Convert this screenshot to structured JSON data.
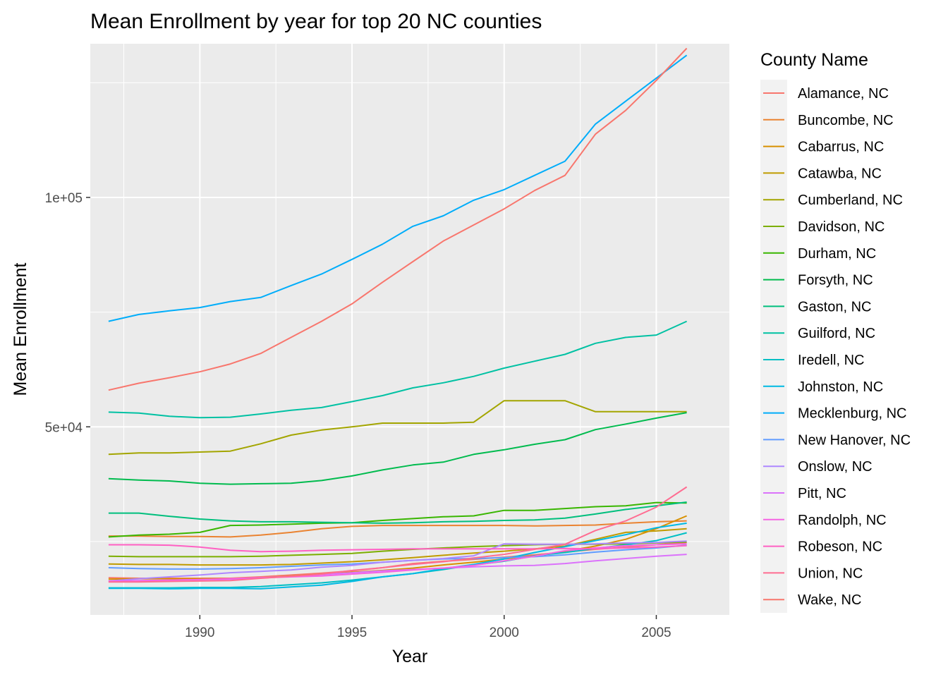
{
  "chart_data": {
    "type": "line",
    "title": "Mean Enrollment by year for top 20 NC counties",
    "xlabel": "Year",
    "ylabel": "Mean  Enrollment",
    "xlim": [
      1986.4,
      2007.4
    ],
    "ylim": [
      9000,
      133500
    ],
    "x_ticks": [
      1990,
      1995,
      2000,
      2005
    ],
    "x_tick_labels": [
      "1990",
      "1995",
      "2000",
      "2005"
    ],
    "x_minor_ticks": [
      1987.5,
      1992.5,
      1997.5,
      2002.5
    ],
    "y_ticks": [
      50000,
      100000
    ],
    "y_tick_labels": [
      "5e+04",
      "1e+05"
    ],
    "y_minor_ticks": [
      25000,
      75000,
      125000
    ],
    "grid": true,
    "legend_title": "County Name",
    "legend_position": "right",
    "x": [
      1987,
      1988,
      1989,
      1990,
      1991,
      1992,
      1993,
      1994,
      1995,
      1996,
      1997,
      1998,
      1999,
      2000,
      2001,
      2002,
      2003,
      2004,
      2005,
      2006
    ],
    "series": [
      {
        "name": "Alamance, NC",
        "color": "#F8766D",
        "values": [
          17100,
          17000,
          17000,
          17000,
          17000,
          17300,
          17700,
          18100,
          18600,
          19300,
          20200,
          20700,
          21100,
          21600,
          22100,
          22700,
          23300,
          23800,
          24300,
          24800
        ]
      },
      {
        "name": "Buncombe, NC",
        "color": "#EA8331",
        "values": [
          26200,
          26200,
          26100,
          26100,
          26000,
          26400,
          27000,
          27800,
          28300,
          28500,
          28500,
          28500,
          28500,
          28500,
          28400,
          28500,
          28600,
          29000,
          29300,
          29500
        ]
      },
      {
        "name": "Cabarrus, NC",
        "color": "#D89000",
        "values": [
          16800,
          16900,
          16900,
          16900,
          16900,
          17100,
          17500,
          17900,
          18300,
          18700,
          19200,
          19900,
          20500,
          21200,
          21900,
          22900,
          24000,
          25500,
          27800,
          30600
        ]
      },
      {
        "name": "Catawba, NC",
        "color": "#C09B00",
        "values": [
          20100,
          20000,
          20000,
          19900,
          19900,
          19900,
          20000,
          20300,
          20600,
          21000,
          21500,
          22000,
          22500,
          22900,
          23400,
          24000,
          25500,
          27000,
          27300,
          27800
        ]
      },
      {
        "name": "Cumberland, NC",
        "color": "#A3A500",
        "values": [
          44000,
          44300,
          44300,
          44500,
          44700,
          46300,
          48200,
          49300,
          50000,
          50800,
          50800,
          50800,
          51000,
          55700,
          55700,
          55700,
          53300,
          53300,
          53300,
          53300
        ]
      },
      {
        "name": "Davidson, NC",
        "color": "#7CAE00",
        "values": [
          21800,
          21700,
          21700,
          21700,
          21700,
          21800,
          22000,
          22200,
          22400,
          22900,
          23300,
          23600,
          23900,
          24100,
          24300,
          24400,
          24400,
          24500,
          24700,
          24900
        ]
      },
      {
        "name": "Durham, NC",
        "color": "#39B600",
        "values": [
          26000,
          26400,
          26600,
          27000,
          28500,
          28600,
          28800,
          29000,
          29100,
          29600,
          30000,
          30400,
          30600,
          31800,
          31800,
          32200,
          32600,
          32800,
          33500,
          33400
        ]
      },
      {
        "name": "Forsyth, NC",
        "color": "#00BB4E",
        "values": [
          38700,
          38400,
          38200,
          37700,
          37500,
          37600,
          37700,
          38300,
          39300,
          40600,
          41700,
          42300,
          44000,
          45000,
          46200,
          47200,
          49400,
          50600,
          51900,
          53100
        ]
      },
      {
        "name": "Gaston, NC",
        "color": "#00BF7D",
        "values": [
          31200,
          31200,
          30500,
          29900,
          29500,
          29300,
          29300,
          29200,
          29100,
          29000,
          29100,
          29300,
          29400,
          29600,
          29700,
          30100,
          31000,
          32000,
          32800,
          33600
        ]
      },
      {
        "name": "Guilford, NC",
        "color": "#00C1A3",
        "values": [
          53200,
          53000,
          52300,
          52000,
          52100,
          52800,
          53600,
          54200,
          55500,
          56800,
          58500,
          59600,
          61000,
          62800,
          64300,
          65800,
          68200,
          69500,
          70000,
          73000
        ]
      },
      {
        "name": "Iredell, NC",
        "color": "#00BFC4",
        "values": [
          14900,
          14900,
          14900,
          15000,
          15000,
          15200,
          15600,
          16000,
          16600,
          17300,
          18000,
          18900,
          19900,
          20700,
          21900,
          22600,
          23500,
          24300,
          25200,
          26900
        ]
      },
      {
        "name": "Johnston, NC",
        "color": "#00B9E3",
        "values": [
          14800,
          14800,
          14700,
          14800,
          14800,
          14700,
          15100,
          15500,
          16300,
          17300,
          18000,
          19100,
          20000,
          21200,
          22600,
          23900,
          25200,
          26500,
          28000,
          29000
        ]
      },
      {
        "name": "Mecklenburg, NC",
        "color": "#00ADFA",
        "values": [
          73000,
          74500,
          75300,
          76000,
          77300,
          78200,
          80800,
          83300,
          86500,
          89800,
          93700,
          96000,
          99400,
          101700,
          104800,
          107900,
          116000,
          121000,
          126000,
          131000
        ]
      },
      {
        "name": "New Hanover, NC",
        "color": "#619CFF",
        "values": [
          19300,
          19100,
          19000,
          19000,
          19100,
          19300,
          19600,
          19900,
          20100,
          20500,
          20900,
          21200,
          21300,
          21500,
          21700,
          22100,
          22700,
          23200,
          23600,
          24200
        ]
      },
      {
        "name": "Onslow, NC",
        "color": "#AE87FF",
        "values": [
          16400,
          16900,
          17300,
          17700,
          18200,
          18500,
          18800,
          19400,
          19800,
          20500,
          20900,
          21300,
          21900,
          24500,
          24400,
          24400,
          24500,
          24700,
          24800,
          25100
        ]
      },
      {
        "name": "Pitt, NC",
        "color": "#DB72FB",
        "values": [
          16400,
          16500,
          16600,
          16700,
          16800,
          17100,
          17400,
          17800,
          18200,
          18600,
          18900,
          19200,
          19500,
          19700,
          19800,
          20200,
          20800,
          21300,
          21800,
          22200
        ]
      },
      {
        "name": "Randolph, NC",
        "color": "#F564E3",
        "values": [
          16300,
          16400,
          16600,
          16700,
          16900,
          17100,
          17300,
          17500,
          17900,
          18300,
          18800,
          19200,
          19800,
          20800,
          21800,
          23000,
          23600,
          24100,
          24300,
          24500
        ]
      },
      {
        "name": "Robeson, NC",
        "color": "#FF61C3",
        "values": [
          24300,
          24300,
          24200,
          23800,
          23100,
          22800,
          22900,
          23100,
          23200,
          23300,
          23400,
          23400,
          23400,
          23400,
          23400,
          23500,
          23400,
          23600,
          23800,
          24100
        ]
      },
      {
        "name": "Union, NC",
        "color": "#FF6C91",
        "values": [
          16200,
          16200,
          16300,
          16400,
          16500,
          17000,
          17400,
          17900,
          18700,
          19300,
          20000,
          20600,
          21400,
          22200,
          23300,
          24400,
          27400,
          29500,
          32500,
          36900
        ]
      },
      {
        "name": "Wake, NC",
        "color": "#F8766D",
        "values": [
          58000,
          59500,
          60700,
          62000,
          63700,
          66000,
          69500,
          73000,
          76800,
          81500,
          86000,
          90500,
          94000,
          97500,
          101500,
          104800,
          113800,
          119000,
          125500,
          132500
        ]
      }
    ]
  }
}
